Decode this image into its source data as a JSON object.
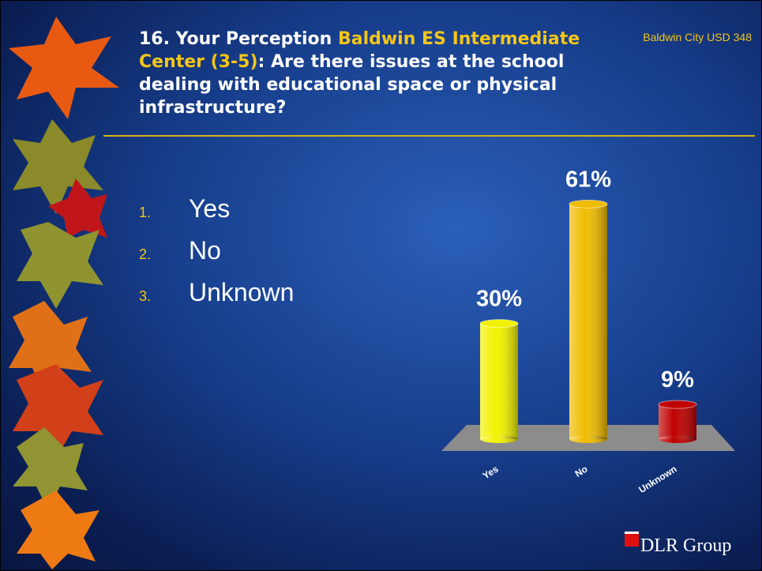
{
  "header": {
    "organization": "Baldwin City USD 348"
  },
  "chart_data": {
    "type": "bar",
    "title": [
      "16. Your Perception",
      "Baldwin ES Intermediate Center (3-5)",
      ": Are there issues at the school dealing with educational space or physical infrastructure?"
    ],
    "options": [
      {
        "number": "1.",
        "label": "Yes"
      },
      {
        "number": "2.",
        "label": "No"
      },
      {
        "number": "3.",
        "label": "Unknown"
      }
    ],
    "categories": [
      "Yes",
      "No",
      "Unknown"
    ],
    "values": [
      30,
      61,
      9
    ],
    "value_labels": [
      "30%",
      "61%",
      "9%"
    ],
    "colors": [
      "#f2f200",
      "#f0bc00",
      "#c00000"
    ]
  },
  "footer": {
    "logo": "DLR Group"
  }
}
